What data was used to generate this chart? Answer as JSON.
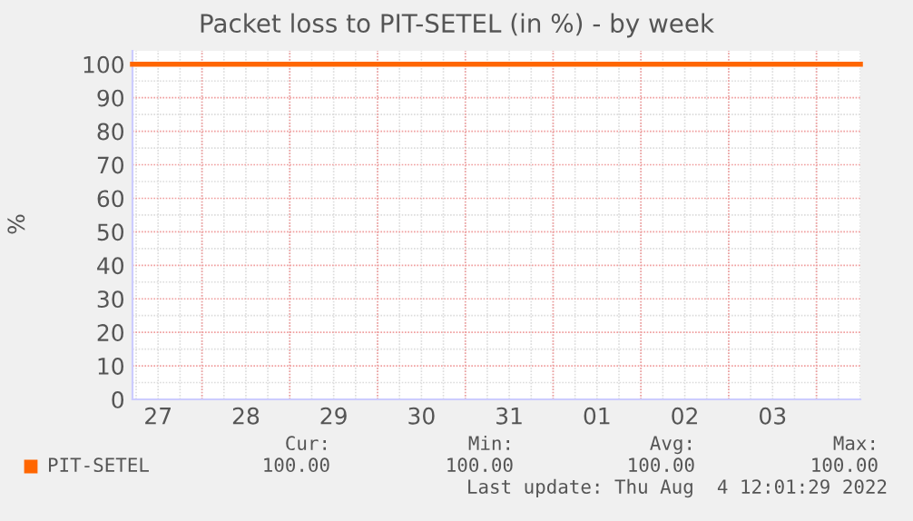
{
  "chart_data": {
    "type": "line",
    "title": "Packet loss to PIT-SETEL (in %) - by week",
    "ylabel": "%",
    "x": [
      "2022-07-27T05:00",
      "2022-08-04T12:00"
    ],
    "series": [
      {
        "name": "PIT-SETEL",
        "color": "#ff6600",
        "values": [
          100,
          100
        ]
      }
    ],
    "xlim": [
      "2022-07-27T05:00",
      "2022-08-04T12:00"
    ],
    "xticks": [
      {
        "value": "2022-07-27T12:00",
        "label": "27"
      },
      {
        "value": "2022-07-28T00:00",
        "label": null
      },
      {
        "value": "2022-07-28T12:00",
        "label": "28"
      },
      {
        "value": "2022-07-29T00:00",
        "label": null
      },
      {
        "value": "2022-07-29T12:00",
        "label": "29"
      },
      {
        "value": "2022-07-30T00:00",
        "label": null
      },
      {
        "value": "2022-07-30T12:00",
        "label": "30"
      },
      {
        "value": "2022-07-31T00:00",
        "label": null
      },
      {
        "value": "2022-07-31T12:00",
        "label": "31"
      },
      {
        "value": "2022-08-01T00:00",
        "label": null
      },
      {
        "value": "2022-08-01T12:00",
        "label": "01"
      },
      {
        "value": "2022-08-02T00:00",
        "label": null
      },
      {
        "value": "2022-08-02T12:00",
        "label": "02"
      },
      {
        "value": "2022-08-03T00:00",
        "label": null
      },
      {
        "value": "2022-08-03T12:00",
        "label": "03"
      },
      {
        "value": "2022-08-04T00:00",
        "label": null
      }
    ],
    "ylim": [
      0,
      104
    ],
    "yticks": [
      0,
      10,
      20,
      30,
      40,
      50,
      60,
      70,
      80,
      90,
      100
    ],
    "grid": true,
    "legend": "bottom",
    "annotations": [
      "Cur:",
      "Min:",
      "Avg:",
      "Max:",
      "100.00",
      "100.00",
      "100.00",
      "100.00",
      "Last update: Thu Aug  4 12:01:29 2022"
    ]
  }
}
